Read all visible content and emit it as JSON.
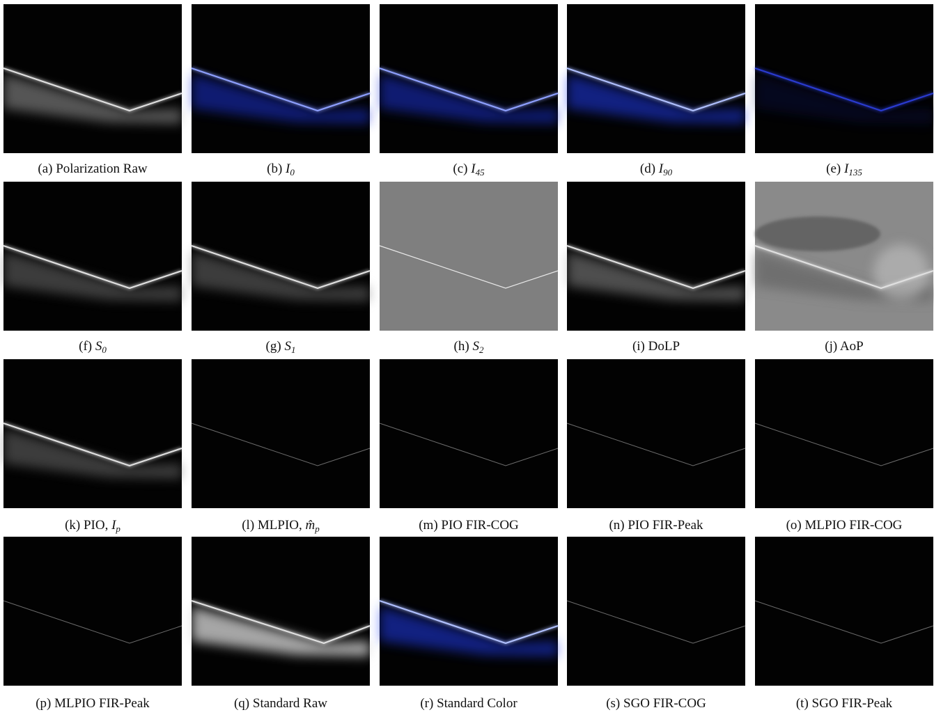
{
  "figure": {
    "panels": [
      {
        "tag": "(a)",
        "text": "Polarization Raw"
      },
      {
        "tag": "(b)",
        "math": "I",
        "sub": "0"
      },
      {
        "tag": "(c)",
        "math": "I",
        "sub": "45"
      },
      {
        "tag": "(d)",
        "math": "I",
        "sub": "90"
      },
      {
        "tag": "(e)",
        "math": "I",
        "sub": "135"
      },
      {
        "tag": "(f)",
        "math": "S",
        "sub": "0"
      },
      {
        "tag": "(g)",
        "math": "S",
        "sub": "1"
      },
      {
        "tag": "(h)",
        "math": "S",
        "sub": "2"
      },
      {
        "tag": "(i)",
        "text": "DoLP"
      },
      {
        "tag": "(j)",
        "text": "AoP"
      },
      {
        "tag": "(k)",
        "text": "PIO,",
        "math": "I",
        "sub": "p"
      },
      {
        "tag": "(l)",
        "text": "MLPIO,",
        "math": "m̂",
        "sub": "p"
      },
      {
        "tag": "(m)",
        "text": "PIO FIR-COG"
      },
      {
        "tag": "(n)",
        "text": "PIO FIR-Peak"
      },
      {
        "tag": "(o)",
        "text": "MLPIO FIR-COG"
      },
      {
        "tag": "(p)",
        "text": "MLPIO FIR-Peak"
      },
      {
        "tag": "(q)",
        "text": "Standard Raw"
      },
      {
        "tag": "(r)",
        "text": "Standard Color"
      },
      {
        "tag": "(s)",
        "text": "SGO FIR-COG"
      },
      {
        "tag": "(t)",
        "text": "SGO FIR-Peak"
      }
    ]
  }
}
